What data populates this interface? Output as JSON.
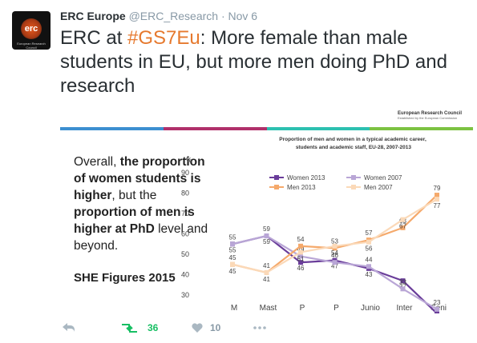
{
  "avatar": {
    "text": "erc",
    "caption": "European Research Council"
  },
  "tweet": {
    "name": "ERC Europe",
    "handle": "@ERC_Research",
    "time": "· Nov 6",
    "text": [
      "ERC at ",
      "#GS7Eu",
      ": More female than male students in EU, but more men doing PhD and research"
    ]
  },
  "image": {
    "org": "European Research Council",
    "org_sub": "Established by the European Commission",
    "text": [
      {
        "t": "Overall, ",
        "b": false
      },
      {
        "t": "the proportion of women students is higher",
        "b": true
      },
      {
        "t": ", but the ",
        "b": false
      },
      {
        "t": "proportion of men is higher at PhD",
        "b": true
      },
      {
        "t": " level and beyond.",
        "b": false
      }
    ],
    "source": "SHE Figures 2015"
  },
  "chart_data": {
    "type": "line",
    "title": "Proportion of men and women in a typical academic career, students and academic staff, EU-28, 2007-2013",
    "y_label": "%",
    "categories": [
      "M\nas",
      "Mast\ner\nGrad",
      "P\nh\nD",
      "P\nh\nD",
      "Junio\nr\nRese",
      "Inter\nmedi\nate",
      "Seni\nor\nRese\narch\ners"
    ],
    "series": [
      {
        "name": "Women 2013",
        "color": "#6a3d9a",
        "values": [
          55,
          59,
          46,
          47,
          43,
          37,
          21
        ]
      },
      {
        "name": "Women 2007",
        "color": "#b9a6d6",
        "values": [
          55,
          59,
          49,
          46,
          44,
          33,
          23
        ]
      },
      {
        "name": "Men 2013",
        "color": "#f5a96b",
        "values": [
          45,
          41,
          54,
          53,
          57,
          63,
          79
        ]
      },
      {
        "name": "Men 2007",
        "color": "#fbd9b8",
        "values": [
          45,
          41,
          51,
          54,
          56,
          67,
          77
        ]
      }
    ],
    "ylim": [
      20,
      90
    ],
    "yticks": [
      30,
      40,
      50,
      60,
      70,
      80,
      90
    ],
    "grid": false
  },
  "actions": {
    "retweets": 36,
    "likes": 10
  }
}
